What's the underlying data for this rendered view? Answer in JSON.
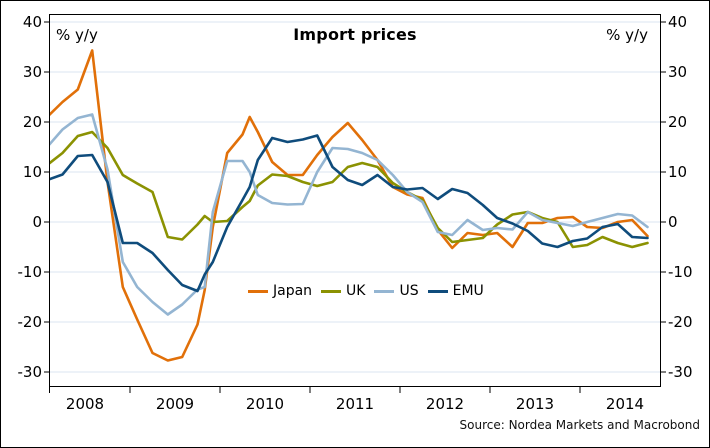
{
  "figure": {
    "title": "Import prices",
    "y_axis_unit_left": "% y/y",
    "y_axis_unit_right": "% y/y",
    "source_note": "Source: Nordea Markets and Macrobond",
    "background_color": "#ffffff",
    "border_color": "#000000",
    "gridline_color": "#dbe5f0"
  },
  "chart_data": {
    "type": "line",
    "title": "Import prices",
    "ylabel_left": "% y/y",
    "ylabel_right": "% y/y",
    "ylim": [
      -33,
      41.6
    ],
    "y_ticks": [
      40,
      30,
      20,
      10,
      0,
      -10,
      -20,
      -30
    ],
    "grid": "horizontal",
    "legend_position": "inside-bottom-center",
    "x_tick_labels": [
      "2008",
      "2009",
      "2010",
      "2011",
      "2012",
      "2013",
      "2014"
    ],
    "x_year_start": 2008,
    "xlim": [
      2008.1,
      2014.9
    ],
    "x": [
      2008.08,
      2008.25,
      2008.42,
      2008.58,
      2008.75,
      2008.92,
      2009.08,
      2009.25,
      2009.42,
      2009.58,
      2009.75,
      2009.83,
      2009.92,
      2010.08,
      2010.25,
      2010.33,
      2010.42,
      2010.58,
      2010.75,
      2010.92,
      2011.08,
      2011.25,
      2011.42,
      2011.58,
      2011.75,
      2011.92,
      2012.08,
      2012.25,
      2012.42,
      2012.58,
      2012.75,
      2012.92,
      2013.08,
      2013.25,
      2013.42,
      2013.58,
      2013.75,
      2013.92,
      2014.08,
      2014.25,
      2014.42,
      2014.58,
      2014.75
    ],
    "series": [
      {
        "name": "Japan",
        "color": "#E17009",
        "values": [
          21,
          24,
          26.5,
          34.3,
          8,
          -13,
          -19.5,
          -26.2,
          -27.7,
          -27,
          -20.5,
          -13.6,
          -1,
          13.8,
          17.5,
          21,
          18,
          12,
          9.4,
          9.4,
          13.4,
          17,
          19.8,
          16.4,
          12.4,
          7,
          5.5,
          4.8,
          -1.6,
          -5.2,
          -2.2,
          -2.6,
          -2.2,
          -5,
          -0.2,
          -0.2,
          0.8,
          1,
          -1,
          -1.2,
          0,
          0.4,
          -2.8
        ]
      },
      {
        "name": "UK",
        "color": "#8B9202",
        "values": [
          11.4,
          13.8,
          17.2,
          18,
          14.8,
          9.4,
          7.7,
          6,
          -3,
          -3.5,
          -0.5,
          1.2,
          0,
          0.2,
          3,
          4.2,
          7.3,
          9.5,
          9.2,
          8,
          7.2,
          8,
          11,
          11.8,
          11,
          7.8,
          6,
          4.4,
          -1.2,
          -4,
          -3.6,
          -3.2,
          -0.5,
          1.5,
          2,
          0.8,
          0,
          -5,
          -4.6,
          -3,
          -4.2,
          -5,
          -4.2
        ]
      },
      {
        "name": "US",
        "color": "#94B5D2",
        "values": [
          15,
          18.5,
          20.8,
          21.5,
          10.5,
          -8,
          -13,
          -16,
          -18.5,
          -16.5,
          -13.5,
          -13,
          2,
          12.2,
          12.2,
          10,
          5.4,
          3.8,
          3.5,
          3.6,
          10,
          14.8,
          14.6,
          13.8,
          12.4,
          9.4,
          6,
          4,
          -2,
          -2.6,
          0.4,
          -1.6,
          -1.2,
          -1.5,
          2,
          0.4,
          -0.2,
          -0.8,
          0,
          0.8,
          1.6,
          1.3,
          -1
        ]
      },
      {
        "name": "EMU",
        "color": "#0F4C7C",
        "values": [
          8.4,
          9.5,
          13.2,
          13.4,
          8,
          -4.2,
          -4.2,
          -6.2,
          -9.6,
          -12.6,
          -13.8,
          -10.5,
          -8,
          -1,
          4.4,
          7,
          12.4,
          16.8,
          16,
          16.5,
          17.3,
          11,
          8.4,
          7.4,
          9.4,
          7,
          6.5,
          6.8,
          4.6,
          6.6,
          5.8,
          3.4,
          0.8,
          -0.3,
          -1.8,
          -4.3,
          -5,
          -3.8,
          -3.3,
          -1,
          -0.4,
          -3,
          -3.2
        ]
      }
    ]
  }
}
